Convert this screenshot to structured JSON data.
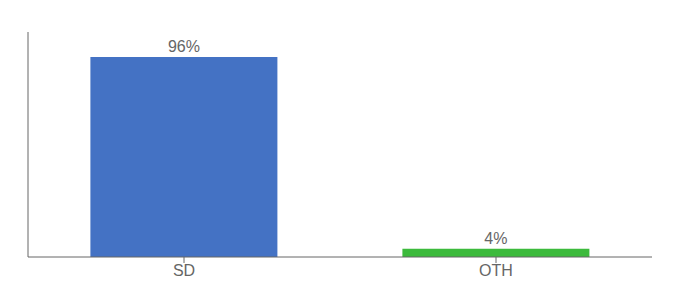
{
  "chart_data": {
    "type": "bar",
    "categories": [
      "SD",
      "OTH"
    ],
    "values": [
      96,
      4
    ],
    "value_labels": [
      "96%",
      "4%"
    ],
    "colors": [
      "#4472c4",
      "#3cba3c"
    ],
    "ylim": [
      0,
      108
    ],
    "tick_labels": "x",
    "data_labels": true
  }
}
